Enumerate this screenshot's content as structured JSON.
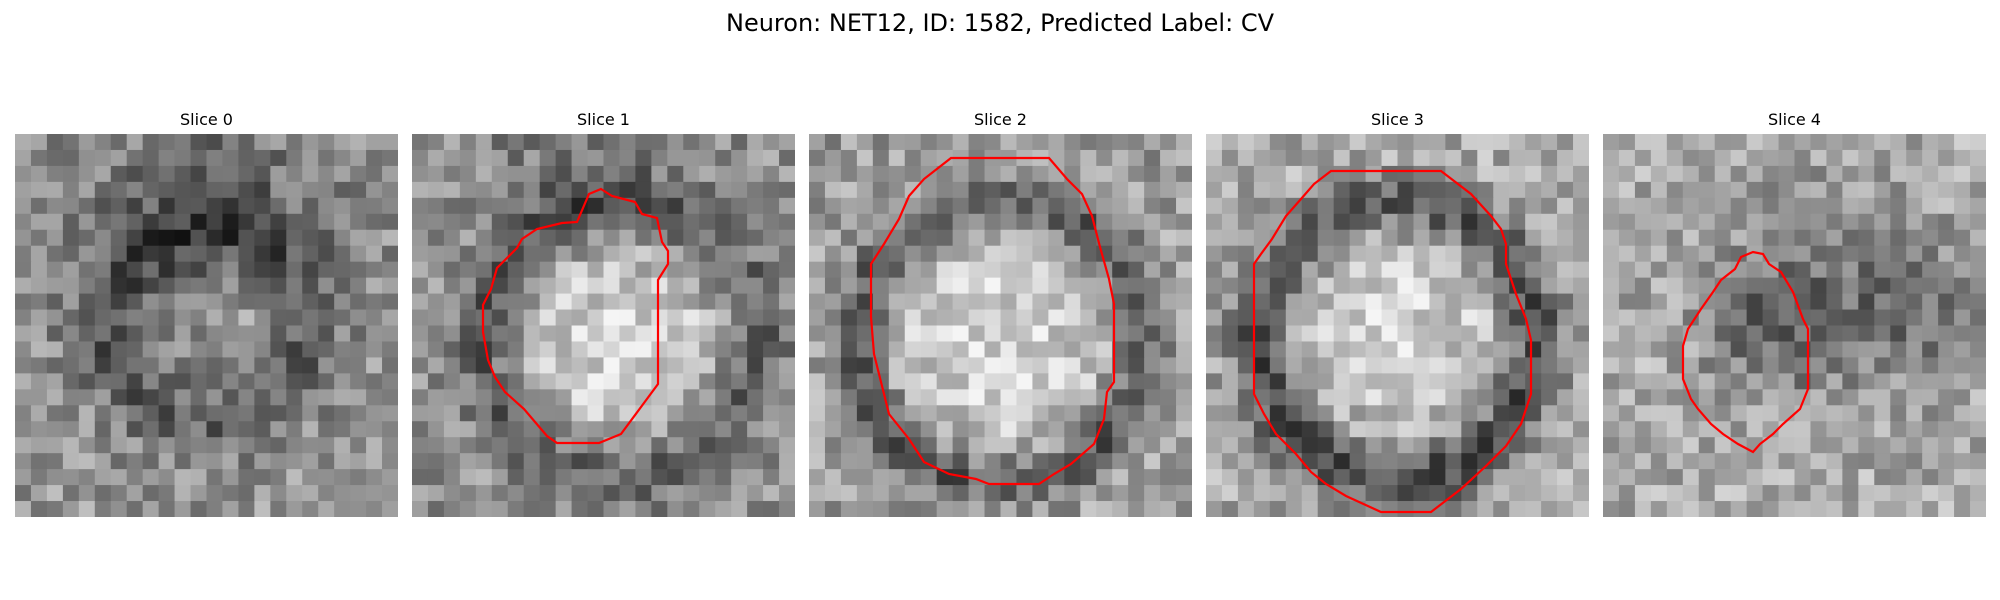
{
  "figure": {
    "title": "Neuron: NET12, ID: 1582, Predicted Label: CV"
  },
  "panels": [
    {
      "title": "Slice 0",
      "contour": false
    },
    {
      "title": "Slice 1",
      "contour": true
    },
    {
      "title": "Slice 2",
      "contour": true
    },
    {
      "title": "Slice 3",
      "contour": true
    },
    {
      "title": "Slice 4",
      "contour": true
    }
  ],
  "colors": {
    "contour": "#ff0000",
    "background": "#ffffff"
  }
}
